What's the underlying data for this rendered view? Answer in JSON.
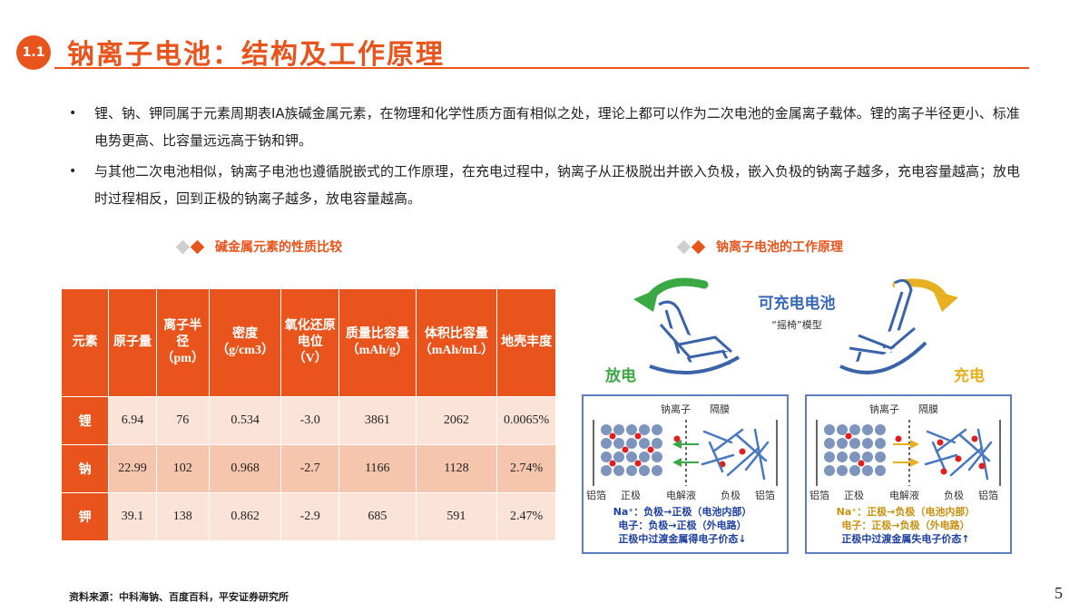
{
  "header": {
    "section_number": "1.1",
    "title": "钠离子电池：结构及工作原理"
  },
  "bullets": [
    "锂、钠、钾同属于元素周期表ⅠA族碱金属元素，在物理和化学性质方面有相似之处，理论上都可以作为二次电池的金属离子载体。锂的离子半径更小、标准电势更高、比容量远远高于钠和钾。",
    "与其他二次电池相似，钠离子电池也遵循脱嵌式的工作原理，在充电过程中，钠离子从正极脱出并嵌入负极，嵌入负极的钠离子越多，充电容量越高；放电时过程相反，回到正极的钠离子越多，放电容量越高。"
  ],
  "table_section": {
    "caption": "碱金属元素的性质比较",
    "headers": [
      "元素",
      "原子量",
      "离子半径（pm）",
      "密度（g/cm3）",
      "氧化还原电位（V）",
      "质量比容量（mAh/g）",
      "体积比容量（mAh/mL）",
      "地壳丰度"
    ],
    "rows": [
      [
        "锂",
        "6.94",
        "76",
        "0.534",
        "-3.0",
        "3861",
        "2062",
        "0.0065%"
      ],
      [
        "钠",
        "22.99",
        "102",
        "0.968",
        "-2.7",
        "1166",
        "1128",
        "2.74%"
      ],
      [
        "钾",
        "39.1",
        "138",
        "0.862",
        "-2.9",
        "685",
        "591",
        "2.47%"
      ]
    ]
  },
  "diagram_section": {
    "caption": "钠离子电池的工作原理",
    "title": "可充电电池",
    "subtitle": "“摇椅”模型",
    "discharge_label": "放电",
    "charge_label": "充电",
    "panel_labels": {
      "ion": "钠离子",
      "separator": "隔膜",
      "foil_left": "铝箔",
      "positive": "正极",
      "electrolyte": "电解液",
      "negative": "负极",
      "foil_right": "铝箔"
    },
    "discharge_notes": [
      "Na⁺：负极→正极（电池内部）",
      "电子：负极→正极（外电路）",
      "正极中过渡金属得电子价态↓"
    ],
    "charge_notes": [
      "Na⁺：正极→负极（电池内部）",
      "电子：正极→负极（外电路）",
      "正极中过渡金属失电子价态↑"
    ],
    "colors": {
      "discharge": "#3aa845",
      "charge": "#e6b020",
      "title_blue": "#3a68b8",
      "note_blue": "#1c3fa0",
      "ion_red": "#e02020",
      "atom_blue": "#7d94bd",
      "panel_border": "#5d7fbf"
    }
  },
  "footer": {
    "source": "资料来源：中科海钠、百度百科，平安证券研究所",
    "page": "5"
  }
}
